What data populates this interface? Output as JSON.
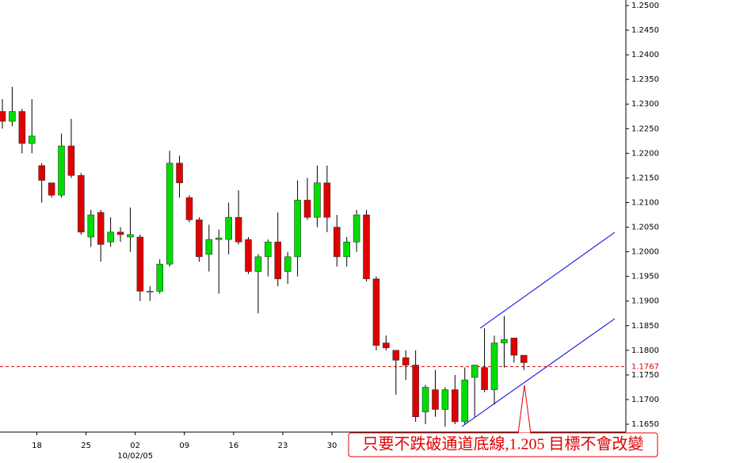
{
  "chart_data": {
    "type": "candlestick",
    "categories": [
      null,
      null,
      null,
      null,
      "18",
      null,
      null,
      null,
      null,
      "25",
      null,
      null,
      null,
      null,
      "02",
      null,
      null,
      null,
      null,
      "09",
      null,
      null,
      null,
      null,
      "16",
      null,
      null,
      null,
      null,
      "23",
      null,
      null,
      null,
      null,
      "30",
      null,
      null,
      null,
      null,
      null,
      null,
      null,
      null,
      null,
      null,
      null,
      null,
      null,
      null,
      null,
      null,
      null,
      null,
      null
    ],
    "x_sublabels": [
      null,
      null,
      null,
      null,
      null,
      null,
      null,
      null,
      null,
      null,
      null,
      null,
      null,
      null,
      "10/02/05",
      null,
      null,
      null,
      null,
      null,
      null,
      null,
      null,
      null,
      null,
      null,
      null,
      null,
      null,
      null,
      null,
      null,
      null,
      null,
      null,
      null,
      null,
      null,
      null,
      null,
      null,
      null,
      null,
      null,
      null,
      null,
      null,
      null,
      null,
      null,
      null,
      null,
      null,
      null
    ],
    "open": [
      1.2285,
      1.2265,
      1.2285,
      1.222,
      1.2175,
      1.214,
      1.2115,
      1.2215,
      1.2155,
      1.203,
      1.208,
      1.202,
      1.204,
      1.203,
      1.203,
      1.192,
      1.192,
      1.1975,
      1.218,
      1.211,
      1.2065,
      1.1995,
      1.2025,
      1.2025,
      1.207,
      1.2025,
      1.196,
      1.199,
      1.202,
      1.196,
      1.199,
      1.2105,
      1.207,
      1.214,
      1.205,
      1.199,
      1.202,
      1.2075,
      1.1945,
      1.1815,
      1.18,
      1.1785,
      1.177,
      1.1675,
      1.172,
      1.168,
      1.172,
      1.1655,
      1.1745,
      1.1765,
      1.172,
      1.1815,
      1.1825,
      1.179
    ],
    "close": [
      1.2265,
      1.2285,
      1.222,
      1.2235,
      1.2145,
      1.2115,
      1.2215,
      1.2155,
      1.204,
      1.2075,
      1.2015,
      1.204,
      1.2035,
      1.2035,
      1.192,
      1.192,
      1.1975,
      1.218,
      1.214,
      1.2065,
      1.199,
      1.2025,
      1.2028,
      1.207,
      1.202,
      1.196,
      1.199,
      1.202,
      1.1945,
      1.199,
      1.2105,
      1.207,
      1.214,
      1.207,
      1.199,
      1.202,
      1.2075,
      1.1945,
      1.181,
      1.1805,
      1.178,
      1.177,
      1.1665,
      1.1725,
      1.168,
      1.172,
      1.1655,
      1.174,
      1.177,
      1.172,
      1.1815,
      1.1822,
      1.179,
      1.1775
    ],
    "high": [
      1.231,
      1.2335,
      1.229,
      1.231,
      1.218,
      1.214,
      1.224,
      1.227,
      1.216,
      1.2085,
      1.2085,
      1.207,
      1.205,
      1.209,
      1.2035,
      1.193,
      1.1985,
      1.2205,
      1.2195,
      1.2115,
      1.207,
      1.2055,
      1.2045,
      1.21,
      1.2125,
      1.203,
      1.1995,
      1.2025,
      1.208,
      1.2,
      1.2145,
      1.215,
      1.2175,
      1.2175,
      1.2075,
      1.203,
      1.2085,
      1.2085,
      1.195,
      1.183,
      1.18,
      1.18,
      1.18,
      1.173,
      1.176,
      1.1725,
      1.175,
      1.1765,
      1.177,
      1.1845,
      1.183,
      1.187,
      1.1825,
      1.179
    ],
    "low": [
      1.225,
      1.2255,
      1.22,
      1.22,
      1.21,
      1.211,
      1.211,
      1.215,
      1.2035,
      1.201,
      1.198,
      1.201,
      1.202,
      1.2,
      1.19,
      1.19,
      1.1915,
      1.197,
      1.211,
      1.206,
      1.198,
      1.196,
      1.1915,
      1.1995,
      1.2015,
      1.1955,
      1.1875,
      1.195,
      1.193,
      1.1935,
      1.195,
      1.2065,
      1.205,
      1.204,
      1.197,
      1.197,
      1.2,
      1.194,
      1.18,
      1.18,
      1.171,
      1.174,
      1.1655,
      1.165,
      1.1665,
      1.1645,
      1.165,
      1.165,
      1.1665,
      1.1715,
      1.169,
      1.1765,
      1.1775,
      1.176
    ],
    "up_color": "#00dd00",
    "down_color": "#e00000",
    "ylim": [
      1.1634,
      1.25
    ],
    "yticks": [
      {
        "value": 1.165,
        "label": "1.1650"
      },
      {
        "value": 1.17,
        "label": "1.1700"
      },
      {
        "value": 1.175,
        "label": "1.1750"
      },
      {
        "value": 1.18,
        "label": "1.1800"
      },
      {
        "value": 1.185,
        "label": "1.1850"
      },
      {
        "value": 1.19,
        "label": "1.1900"
      },
      {
        "value": 1.195,
        "label": "1.1950"
      },
      {
        "value": 1.2,
        "label": "1.2000"
      },
      {
        "value": 1.205,
        "label": "1.2050"
      },
      {
        "value": 1.21,
        "label": "1.2100"
      },
      {
        "value": 1.215,
        "label": "1.2150"
      },
      {
        "value": 1.22,
        "label": "1.2200"
      },
      {
        "value": 1.225,
        "label": "1.2250"
      },
      {
        "value": 1.23,
        "label": "1.2300"
      },
      {
        "value": 1.235,
        "label": "1.2350"
      },
      {
        "value": 1.24,
        "label": "1.2400"
      },
      {
        "value": 1.245,
        "label": "1.2450"
      },
      {
        "value": 1.25,
        "label": "1.2500"
      }
    ],
    "hline": 1.1767,
    "hline_color": "#e00000",
    "annotation": "只要不跌破通道底線,1.205 目標不會改變"
  }
}
